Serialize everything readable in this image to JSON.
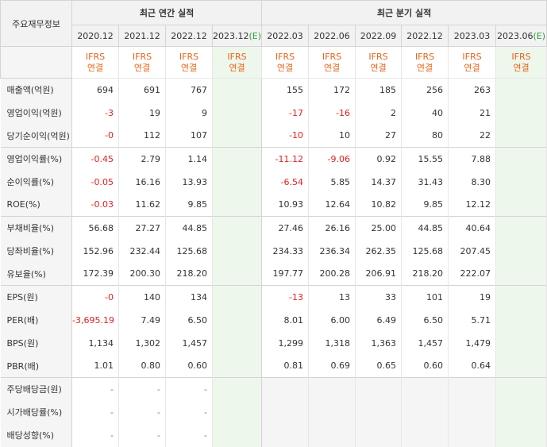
{
  "header": {
    "row_label": "주요재무정보",
    "annual_title": "최근 연간 실적",
    "quarter_title": "최근 분기 실적",
    "annual_periods": [
      "2020.12",
      "2021.12",
      "2022.12",
      "2023.12"
    ],
    "annual_estimate_suffix": "(E)",
    "quarter_periods": [
      "2022.03",
      "2022.06",
      "2022.09",
      "2022.12",
      "2023.03",
      "2023.06"
    ],
    "quarter_estimate_suffix": "(E)",
    "ifrs_line1": "IFRS",
    "ifrs_line2": "연결"
  },
  "rows": [
    {
      "label": "매출액(억원)",
      "annual": [
        "694",
        "691",
        "767",
        ""
      ],
      "quarter": [
        "155",
        "172",
        "185",
        "256",
        "263",
        ""
      ]
    },
    {
      "label": "영업이익(억원)",
      "annual": [
        "-3",
        "19",
        "9",
        ""
      ],
      "quarter": [
        "-17",
        "-16",
        "2",
        "40",
        "21",
        ""
      ]
    },
    {
      "label": "당기순이익(억원)",
      "annual": [
        "-0",
        "112",
        "107",
        ""
      ],
      "quarter": [
        "-10",
        "10",
        "27",
        "80",
        "22",
        ""
      ]
    },
    {
      "label": "영업이익률(%)",
      "annual": [
        "-0.45",
        "2.79",
        "1.14",
        ""
      ],
      "quarter": [
        "-11.12",
        "-9.06",
        "0.92",
        "15.55",
        "7.88",
        ""
      ]
    },
    {
      "label": "순이익률(%)",
      "annual": [
        "-0.05",
        "16.16",
        "13.93",
        ""
      ],
      "quarter": [
        "-6.54",
        "5.85",
        "14.37",
        "31.43",
        "8.30",
        ""
      ]
    },
    {
      "label": "ROE(%)",
      "annual": [
        "-0.03",
        "11.62",
        "9.85",
        ""
      ],
      "quarter": [
        "10.93",
        "12.64",
        "10.82",
        "9.85",
        "12.12",
        ""
      ]
    },
    {
      "label": "부채비율(%)",
      "annual": [
        "56.68",
        "27.27",
        "44.85",
        ""
      ],
      "quarter": [
        "27.46",
        "26.16",
        "25.00",
        "44.85",
        "40.64",
        ""
      ]
    },
    {
      "label": "당좌비율(%)",
      "annual": [
        "152.96",
        "232.44",
        "125.68",
        ""
      ],
      "quarter": [
        "234.33",
        "236.34",
        "262.35",
        "125.68",
        "207.45",
        ""
      ]
    },
    {
      "label": "유보율(%)",
      "annual": [
        "172.39",
        "200.30",
        "218.20",
        ""
      ],
      "quarter": [
        "197.77",
        "200.28",
        "206.91",
        "218.20",
        "222.07",
        ""
      ]
    },
    {
      "label": "EPS(원)",
      "annual": [
        "-0",
        "140",
        "134",
        ""
      ],
      "quarter": [
        "-13",
        "13",
        "33",
        "101",
        "19",
        ""
      ]
    },
    {
      "label": "PER(배)",
      "annual": [
        "-3,695.19",
        "7.49",
        "6.50",
        ""
      ],
      "quarter": [
        "8.01",
        "6.00",
        "6.49",
        "6.50",
        "5.71",
        ""
      ]
    },
    {
      "label": "BPS(원)",
      "annual": [
        "1,134",
        "1,302",
        "1,457",
        ""
      ],
      "quarter": [
        "1,299",
        "1,318",
        "1,363",
        "1,457",
        "1,479",
        ""
      ]
    },
    {
      "label": "PBR(배)",
      "annual": [
        "1.01",
        "0.80",
        "0.60",
        ""
      ],
      "quarter": [
        "0.81",
        "0.69",
        "0.65",
        "0.60",
        "0.64",
        ""
      ]
    },
    {
      "label": "주당배당금(원)",
      "annual": [
        "-",
        "-",
        "-",
        ""
      ],
      "quarter": [
        "",
        "",
        "",
        "",
        "",
        ""
      ]
    },
    {
      "label": "시가배당률(%)",
      "annual": [
        "-",
        "-",
        "-",
        ""
      ],
      "quarter": [
        "",
        "",
        "",
        "",
        "",
        ""
      ]
    },
    {
      "label": "배당성향(%)",
      "annual": [
        "-",
        "-",
        "-",
        ""
      ],
      "quarter": [
        "",
        "",
        "",
        "",
        "",
        ""
      ]
    }
  ],
  "colors": {
    "negative": "#e02020",
    "ifrs": "#e8641b",
    "estimate_bg": "#eef7ec",
    "estimate_mark": "#2f9e3c"
  }
}
